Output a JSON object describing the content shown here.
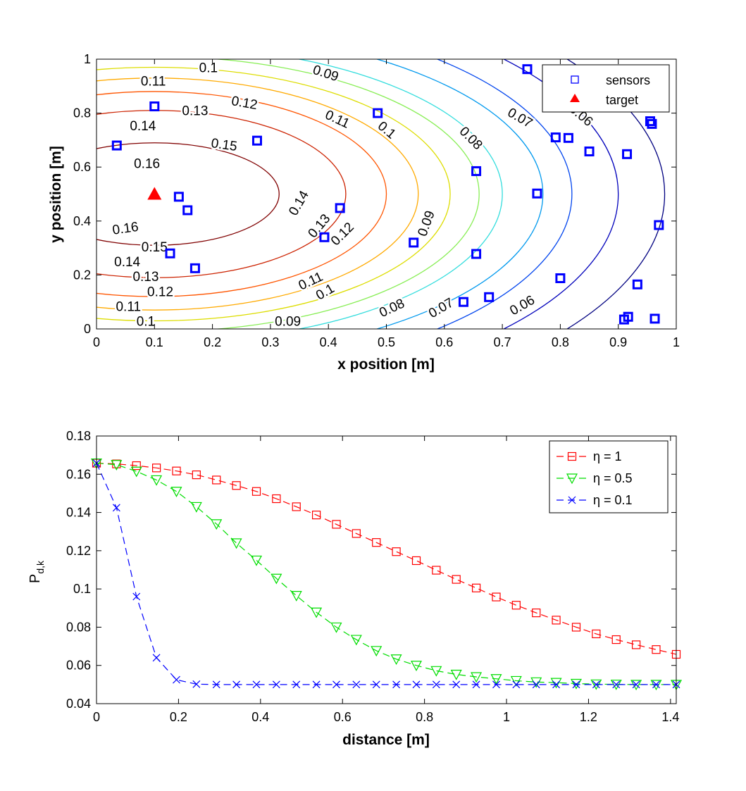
{
  "chart_data": [
    {
      "type": "contour",
      "xlabel": "x position [m]",
      "ylabel": "y position [m]",
      "xlim": [
        0,
        1
      ],
      "ylim": [
        0,
        1
      ],
      "xticks": [
        0,
        0.1,
        0.2,
        0.3,
        0.4,
        0.5,
        0.6,
        0.7,
        0.8,
        0.9,
        1
      ],
      "xtick_labels": [
        "0",
        "0.1",
        "0.2",
        "0.3",
        "0.4",
        "0.5",
        "0.6",
        "0.7",
        "0.8",
        "0.9",
        "1"
      ],
      "yticks": [
        0,
        0.2,
        0.4,
        0.6,
        0.8,
        1
      ],
      "ytick_labels": [
        "0",
        "0.2",
        "0.4",
        "0.6",
        "0.8",
        "1"
      ],
      "grid": false,
      "legend_position": "top-right",
      "legend": [
        {
          "label": "sensors",
          "marker": "square",
          "color": "#0000ff"
        },
        {
          "label": "target",
          "marker": "triangle",
          "color": "#ff0000"
        }
      ],
      "target": {
        "x": 0.1,
        "y": 0.5
      },
      "contour_center": {
        "x": 0.1,
        "y": 0.5
      },
      "contour_levels": [
        {
          "level": 0.16,
          "a": 0.215,
          "b": 0.19,
          "color": "#800000"
        },
        {
          "level": 0.15,
          "a": 0.33,
          "b": 0.31,
          "color": "#cc2200"
        },
        {
          "level": 0.14,
          "a": 0.4,
          "b": 0.38,
          "color": "#ff5500"
        },
        {
          "level": 0.13,
          "a": 0.455,
          "b": 0.43,
          "color": "#ffaa00"
        },
        {
          "level": 0.12,
          "a": 0.51,
          "b": 0.47,
          "color": "#dddd00"
        },
        {
          "level": 0.11,
          "a": 0.56,
          "b": 0.51,
          "color": "#88ee55"
        },
        {
          "level": 0.1,
          "a": 0.6,
          "b": 0.55,
          "color": "#33dddd"
        },
        {
          "level": 0.09,
          "a": 0.67,
          "b": 0.61,
          "color": "#0099ee"
        },
        {
          "level": 0.08,
          "a": 0.72,
          "b": 0.68,
          "color": "#0044ee"
        },
        {
          "level": 0.07,
          "a": 0.8,
          "b": 0.76,
          "color": "#0000bb"
        },
        {
          "level": 0.06,
          "a": 0.88,
          "b": 0.85,
          "color": "#000080"
        }
      ],
      "contour_labels": [
        {
          "text": "0.16",
          "x": 0.087,
          "y": 0.61,
          "angle": 0
        },
        {
          "text": "0.15",
          "x": 0.22,
          "y": 0.68,
          "angle": 8
        },
        {
          "text": "0.14",
          "x": 0.08,
          "y": 0.75,
          "angle": 0
        },
        {
          "text": "0.13",
          "x": 0.17,
          "y": 0.805,
          "angle": 0
        },
        {
          "text": "0.12",
          "x": 0.255,
          "y": 0.835,
          "angle": 10
        },
        {
          "text": "0.11",
          "x": 0.098,
          "y": 0.915,
          "angle": 0
        },
        {
          "text": "0.1",
          "x": 0.193,
          "y": 0.965,
          "angle": 0
        },
        {
          "text": "0.09",
          "x": 0.395,
          "y": 0.945,
          "angle": 18
        },
        {
          "text": "0.11",
          "x": 0.415,
          "y": 0.775,
          "angle": 25
        },
        {
          "text": "0.1",
          "x": 0.5,
          "y": 0.735,
          "angle": 40
        },
        {
          "text": "0.08",
          "x": 0.645,
          "y": 0.705,
          "angle": 45
        },
        {
          "text": "0.07",
          "x": 0.73,
          "y": 0.78,
          "angle": 30
        },
        {
          "text": "0.06",
          "x": 0.835,
          "y": 0.79,
          "angle": 40
        },
        {
          "text": "0.16",
          "x": 0.05,
          "y": 0.37,
          "angle": -8
        },
        {
          "text": "0.15",
          "x": 0.1,
          "y": 0.3,
          "angle": 0
        },
        {
          "text": "0.14",
          "x": 0.053,
          "y": 0.245,
          "angle": 0
        },
        {
          "text": "0.13",
          "x": 0.085,
          "y": 0.19,
          "angle": 0
        },
        {
          "text": "0.12",
          "x": 0.11,
          "y": 0.135,
          "angle": 0
        },
        {
          "text": "0.11",
          "x": 0.055,
          "y": 0.08,
          "angle": 0
        },
        {
          "text": "0.1",
          "x": 0.085,
          "y": 0.025,
          "angle": 0
        },
        {
          "text": "0.09",
          "x": 0.33,
          "y": 0.025,
          "angle": 0
        },
        {
          "text": "0.14",
          "x": 0.35,
          "y": 0.465,
          "angle": -60
        },
        {
          "text": "0.13",
          "x": 0.385,
          "y": 0.38,
          "angle": -50
        },
        {
          "text": "0.12",
          "x": 0.425,
          "y": 0.35,
          "angle": -45
        },
        {
          "text": "0.09",
          "x": 0.57,
          "y": 0.39,
          "angle": -70
        },
        {
          "text": "0.11",
          "x": 0.37,
          "y": 0.175,
          "angle": -25
        },
        {
          "text": "0.1",
          "x": 0.395,
          "y": 0.135,
          "angle": -30
        },
        {
          "text": "0.08",
          "x": 0.51,
          "y": 0.075,
          "angle": -25
        },
        {
          "text": "0.07",
          "x": 0.595,
          "y": 0.075,
          "angle": -30
        },
        {
          "text": "0.06",
          "x": 0.735,
          "y": 0.085,
          "angle": -30
        }
      ],
      "sensors": [
        {
          "x": 0.035,
          "y": 0.68
        },
        {
          "x": 0.1,
          "y": 0.825
        },
        {
          "x": 0.142,
          "y": 0.49
        },
        {
          "x": 0.157,
          "y": 0.44
        },
        {
          "x": 0.127,
          "y": 0.28
        },
        {
          "x": 0.17,
          "y": 0.225
        },
        {
          "x": 0.277,
          "y": 0.698
        },
        {
          "x": 0.393,
          "y": 0.34
        },
        {
          "x": 0.42,
          "y": 0.448
        },
        {
          "x": 0.485,
          "y": 0.8
        },
        {
          "x": 0.547,
          "y": 0.32
        },
        {
          "x": 0.633,
          "y": 0.1
        },
        {
          "x": 0.655,
          "y": 0.585
        },
        {
          "x": 0.655,
          "y": 0.278
        },
        {
          "x": 0.677,
          "y": 0.118
        },
        {
          "x": 0.743,
          "y": 0.963
        },
        {
          "x": 0.76,
          "y": 0.502
        },
        {
          "x": 0.792,
          "y": 0.71
        },
        {
          "x": 0.8,
          "y": 0.188
        },
        {
          "x": 0.814,
          "y": 0.708
        },
        {
          "x": 0.85,
          "y": 0.658
        },
        {
          "x": 0.91,
          "y": 0.035
        },
        {
          "x": 0.915,
          "y": 0.648
        },
        {
          "x": 0.917,
          "y": 0.045
        },
        {
          "x": 0.933,
          "y": 0.165
        },
        {
          "x": 0.955,
          "y": 0.77
        },
        {
          "x": 0.958,
          "y": 0.76
        },
        {
          "x": 0.963,
          "y": 0.038
        },
        {
          "x": 0.97,
          "y": 0.385
        }
      ]
    },
    {
      "type": "line",
      "xlabel": "distance [m]",
      "ylabel_main": "P",
      "ylabel_sub": "d,k",
      "xlim": [
        0,
        1.414
      ],
      "ylim": [
        0.04,
        0.18
      ],
      "xticks": [
        0,
        0.2,
        0.4,
        0.6,
        0.8,
        1,
        1.2,
        1.4
      ],
      "xtick_labels": [
        "0",
        "0.2",
        "0.4",
        "0.6",
        "0.8",
        "1",
        "1.2",
        "1.4"
      ],
      "yticks": [
        0.04,
        0.06,
        0.08,
        0.1,
        0.12,
        0.14,
        0.16,
        0.18
      ],
      "ytick_labels": [
        "0.04",
        "0.06",
        "0.08",
        "0.1",
        "0.12",
        "0.14",
        "0.16",
        "0.18"
      ],
      "grid": false,
      "legend_position": "top-right",
      "x": [
        0,
        0.0487,
        0.0975,
        0.1462,
        0.195,
        0.2437,
        0.2925,
        0.3412,
        0.39,
        0.4387,
        0.4875,
        0.5362,
        0.585,
        0.6337,
        0.6825,
        0.7312,
        0.78,
        0.8287,
        0.8775,
        0.9262,
        0.975,
        1.0237,
        1.0725,
        1.1212,
        1.17,
        1.2187,
        1.2675,
        1.3162,
        1.365,
        1.414
      ],
      "series": [
        {
          "name": "η = 1",
          "color": "#ff0000",
          "marker": "square",
          "values": [
            0.1658,
            0.1654,
            0.1645,
            0.1633,
            0.1617,
            0.1597,
            0.157,
            0.1541,
            0.151,
            0.1472,
            0.143,
            0.1387,
            0.1338,
            0.129,
            0.1243,
            0.1195,
            0.1148,
            0.1098,
            0.105,
            0.1005,
            0.0958,
            0.0915,
            0.0875,
            0.0837,
            0.08,
            0.0765,
            0.0735,
            0.0708,
            0.0683,
            0.0658
          ]
        },
        {
          "name": "η = 0.5",
          "color": "#00dd00",
          "marker": "triangle-down",
          "values": [
            0.1658,
            0.165,
            0.1615,
            0.157,
            0.151,
            0.143,
            0.134,
            0.124,
            0.115,
            0.1055,
            0.0965,
            0.0878,
            0.08,
            0.0735,
            0.0677,
            0.0633,
            0.06,
            0.0572,
            0.0553,
            0.054,
            0.053,
            0.052,
            0.0513,
            0.051,
            0.0505,
            0.0502,
            0.0501,
            0.05,
            0.05,
            0.05
          ]
        },
        {
          "name": "η = 0.1",
          "color": "#0000ff",
          "marker": "x",
          "values": [
            0.1658,
            0.1425,
            0.096,
            0.064,
            0.0525,
            0.0502,
            0.05,
            0.05,
            0.05,
            0.05,
            0.05,
            0.05,
            0.05,
            0.05,
            0.05,
            0.05,
            0.05,
            0.05,
            0.05,
            0.05,
            0.05,
            0.05,
            0.05,
            0.05,
            0.05,
            0.05,
            0.05,
            0.05,
            0.05,
            0.05
          ]
        }
      ]
    }
  ]
}
